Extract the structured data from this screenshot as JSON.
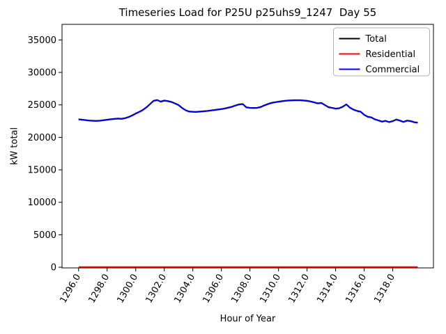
{
  "chart_data": {
    "type": "line",
    "title": "Timeseries Load for P25U p25uhs9_1247  Day 55",
    "xlabel": "Hour of Year",
    "ylabel": "kW total",
    "grid": false,
    "legend_position": "upper right",
    "xlim": [
      1294.84,
      1320.85
    ],
    "ylim": [
      -100,
      37400
    ],
    "xticks": [
      1296,
      1298,
      1300,
      1302,
      1304,
      1306,
      1308,
      1310,
      1312,
      1314,
      1316,
      1318
    ],
    "xtick_labels": [
      "1296.0",
      "1298.0",
      "1300.0",
      "1302.0",
      "1304.0",
      "1306.0",
      "1308.0",
      "1310.0",
      "1312.0",
      "1314.0",
      "1316.0",
      "1318.0"
    ],
    "yticks": [
      0,
      5000,
      10000,
      15000,
      20000,
      25000,
      30000,
      35000
    ],
    "ytick_labels": [
      "0",
      "5000",
      "10000",
      "15000",
      "20000",
      "25000",
      "30000",
      "35000"
    ],
    "x_start": 1296.0,
    "x_step": 0.25,
    "x_end": 1319.75,
    "series": [
      {
        "name": "Total",
        "color": "#000000",
        "sum_of": [
          "Residential",
          "Commercial"
        ]
      },
      {
        "name": "Residential",
        "color": "#ff0000",
        "constant": 40,
        "length": 96
      },
      {
        "name": "Commercial",
        "color": "#0000ff",
        "values": [
          22750,
          22700,
          22630,
          22560,
          22540,
          22510,
          22550,
          22620,
          22700,
          22760,
          22820,
          22870,
          22830,
          22930,
          23100,
          23350,
          23650,
          23900,
          24200,
          24600,
          25100,
          25600,
          25720,
          25480,
          25640,
          25560,
          25430,
          25200,
          24950,
          24500,
          24150,
          23950,
          23910,
          23900,
          23940,
          23990,
          24040,
          24110,
          24180,
          24260,
          24330,
          24430,
          24560,
          24700,
          24900,
          25050,
          25100,
          24600,
          24520,
          24500,
          24520,
          24650,
          24900,
          25100,
          25280,
          25380,
          25470,
          25550,
          25610,
          25650,
          25680,
          25700,
          25690,
          25660,
          25600,
          25500,
          25360,
          25210,
          25280,
          24950,
          24620,
          24520,
          24400,
          24460,
          24700,
          25060,
          24550,
          24250,
          24050,
          23930,
          23450,
          23150,
          23050,
          22750,
          22580,
          22400,
          22520,
          22330,
          22480,
          22720,
          22560,
          22350,
          22560,
          22480,
          22310,
          22240
        ]
      }
    ]
  }
}
